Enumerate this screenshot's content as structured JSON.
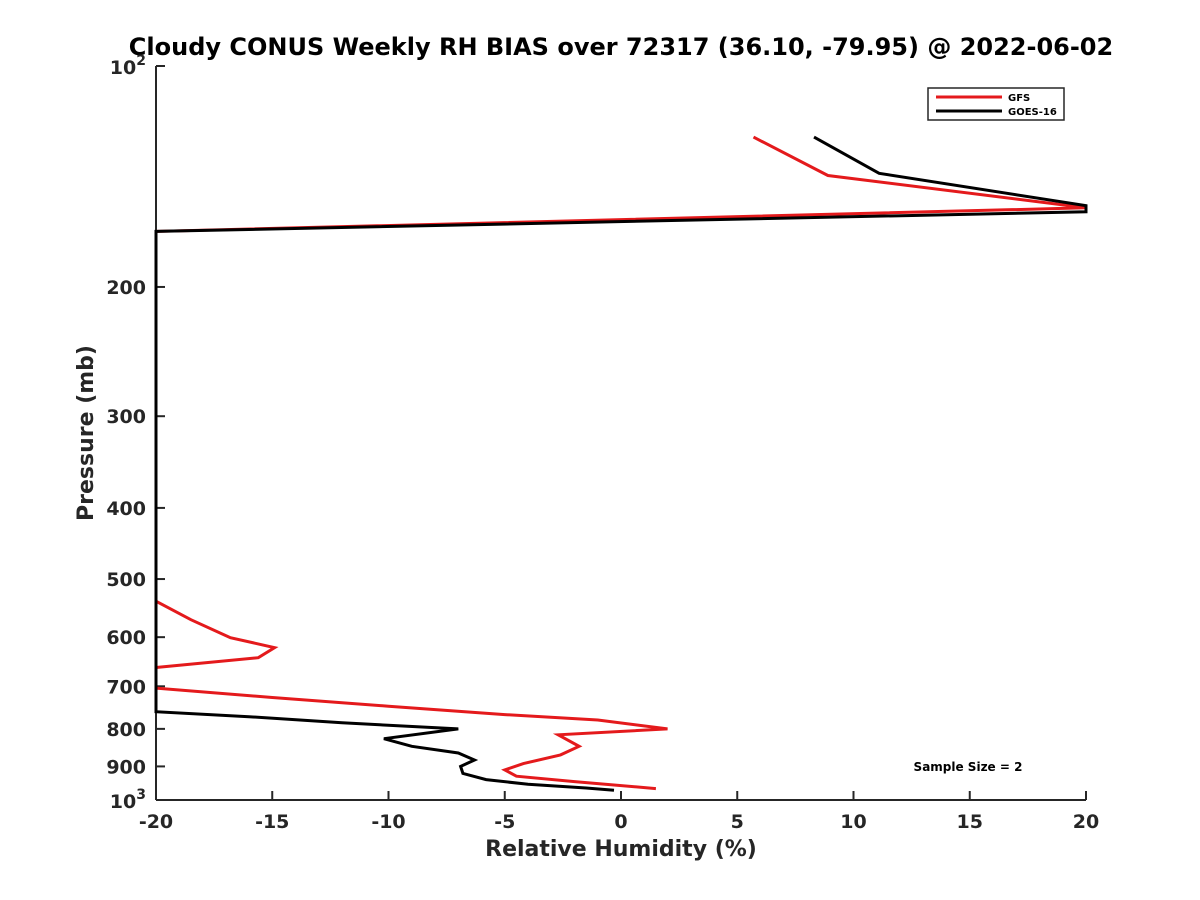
{
  "chart_data": {
    "type": "line",
    "title": "Cloudy CONUS Weekly RH BIAS over 72317 (36.10, -79.95) @ 2022-06-02",
    "xlabel": "Relative Humidity (%)",
    "ylabel": "Pressure (mb)",
    "xlim": [
      -20,
      20
    ],
    "ylim": [
      100,
      1000
    ],
    "y_scale": "log",
    "y_reversed": true,
    "grid": false,
    "legend_position": "top-right",
    "x_ticks": [
      -20,
      -15,
      -10,
      -5,
      0,
      5,
      10,
      15,
      20
    ],
    "x_tick_labels": [
      "-20",
      "-15",
      "-10",
      "-5",
      "0",
      "5",
      "10",
      "15",
      "20"
    ],
    "y_ticks": [
      200,
      300,
      400,
      500,
      600,
      700,
      800,
      900
    ],
    "y_tick_labels": [
      "200",
      "300",
      "400",
      "500",
      "600",
      "700",
      "800",
      "900"
    ],
    "y_top_label": {
      "base": "10",
      "exp": "2"
    },
    "y_bottom_label": {
      "base": "10",
      "exp": "3"
    },
    "series": [
      {
        "name": "GFS",
        "color": "#e41a1c",
        "points": [
          [
            5.7,
            125
          ],
          [
            8.9,
            141
          ],
          [
            20,
            156
          ],
          [
            -20,
            168
          ],
          [
            -20,
            536
          ],
          [
            -18.5,
            568
          ],
          [
            -16.8,
            601
          ],
          [
            -14.9,
            620
          ],
          [
            -15.6,
            640
          ],
          [
            -20,
            660
          ],
          [
            -20,
            704
          ],
          [
            -15,
            725
          ],
          [
            -10,
            745
          ],
          [
            -5,
            765
          ],
          [
            -1,
            778
          ],
          [
            2,
            800
          ],
          [
            -2.7,
            815
          ],
          [
            -1.8,
            845
          ],
          [
            -2.6,
            868
          ],
          [
            -4.2,
            892
          ],
          [
            -5,
            910
          ],
          [
            -4.5,
            928
          ],
          [
            -2,
            944
          ],
          [
            1.5,
            965
          ]
        ]
      },
      {
        "name": "GOES-16",
        "color": "#000000",
        "points": [
          [
            8.3,
            125
          ],
          [
            11.1,
            140
          ],
          [
            20,
            155
          ],
          [
            20,
            158
          ],
          [
            -20,
            168
          ],
          [
            -20,
            758
          ],
          [
            -16,
            770
          ],
          [
            -12,
            785
          ],
          [
            -7,
            800
          ],
          [
            -10.2,
            825
          ],
          [
            -9,
            845
          ],
          [
            -7,
            863
          ],
          [
            -6.3,
            882
          ],
          [
            -6.9,
            900
          ],
          [
            -6.8,
            920
          ],
          [
            -5.8,
            938
          ],
          [
            -4,
            952
          ],
          [
            -1.5,
            963
          ],
          [
            -0.3,
            970
          ]
        ]
      }
    ],
    "annotation": "Sample Size = 2"
  }
}
